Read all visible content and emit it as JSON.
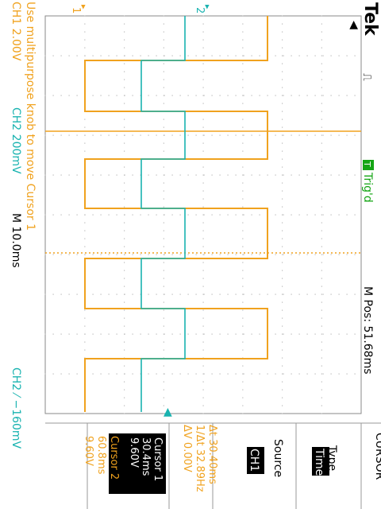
{
  "colors": {
    "background": "#ffffff",
    "ch1": "#f0a21e",
    "ch2": "#19b3b0",
    "trigger": "#14a514",
    "grid": "#b8b8b8",
    "text": "#000000"
  },
  "header": {
    "brand": "Tek",
    "trigger_marker_icon": "trigger-position-arrow-icon",
    "trigger_status": "Trig'd",
    "trigger_badge": "T",
    "main_position": "M Pos: 51.68ms"
  },
  "channels": {
    "ch1_marker": "1",
    "ch2_marker": "2",
    "ch1_scale": "CH1  2.00V",
    "ch2_scale": "CH2  200mV",
    "timebase": "M 10.0ms",
    "trigger_setting": "CH2 ⁄ −160mV"
  },
  "help": {
    "message": "Use multipurpose knob to move Cursor 1"
  },
  "readouts": {
    "delta_t": "Δt 30.40ms",
    "inv_delta_t": "1/Δt 32.89Hz",
    "delta_v": "ΔV 0.00V"
  },
  "menu": {
    "title": "CURSOR",
    "type_label": "Type",
    "type_value": "Time",
    "source_label": "Source",
    "source_value": "CH1",
    "cursor1": {
      "label": "Cursor 1",
      "time": "30.4ms",
      "volt": "9.60V"
    },
    "cursor2": {
      "label": "Cursor 2",
      "time": "60.8ms",
      "volt": "9.60V"
    }
  }
}
